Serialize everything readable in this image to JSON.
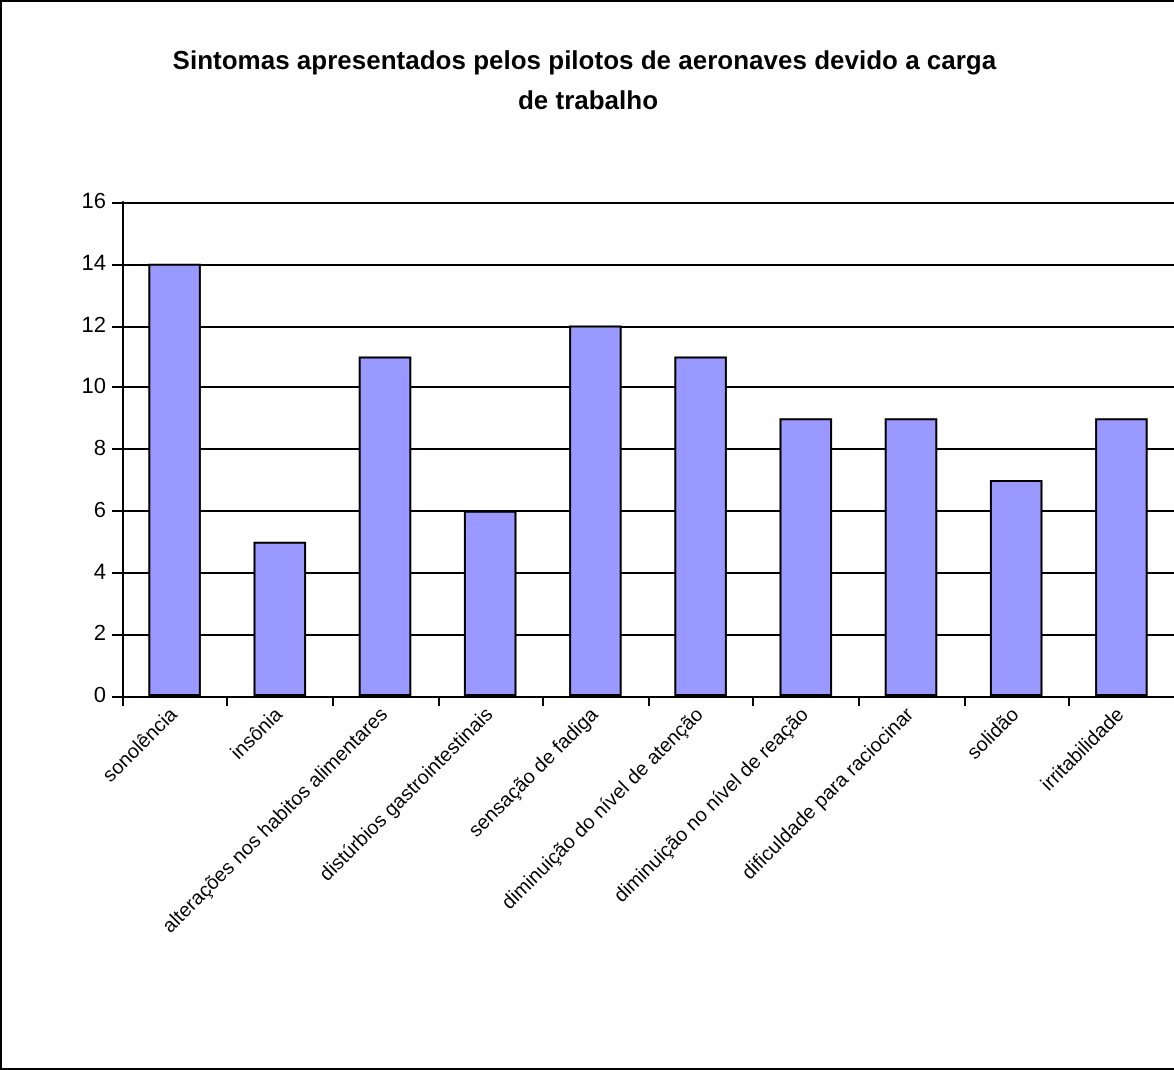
{
  "chart_data": {
    "type": "bar",
    "title": "Sintomas apresentados pelos pilotos de aeronaves devido a carga de trabalho",
    "categories": [
      "sonolência",
      "insônia",
      "alterações nos habitos alimentares",
      "distúrbios gastrointestinais",
      "sensação de fadiga",
      "diminuição do nível de atenção",
      "diminuição no nível de reação",
      "dificuldade para raciocinar",
      "solidão",
      "irritabilidade"
    ],
    "values": [
      14,
      5,
      11,
      6,
      12,
      11,
      9,
      9,
      7,
      9
    ],
    "color": "#9999ff",
    "ylim": [
      0,
      16
    ],
    "yticks": [
      0,
      2,
      4,
      6,
      8,
      10,
      12,
      14,
      16
    ],
    "grid": "y"
  }
}
